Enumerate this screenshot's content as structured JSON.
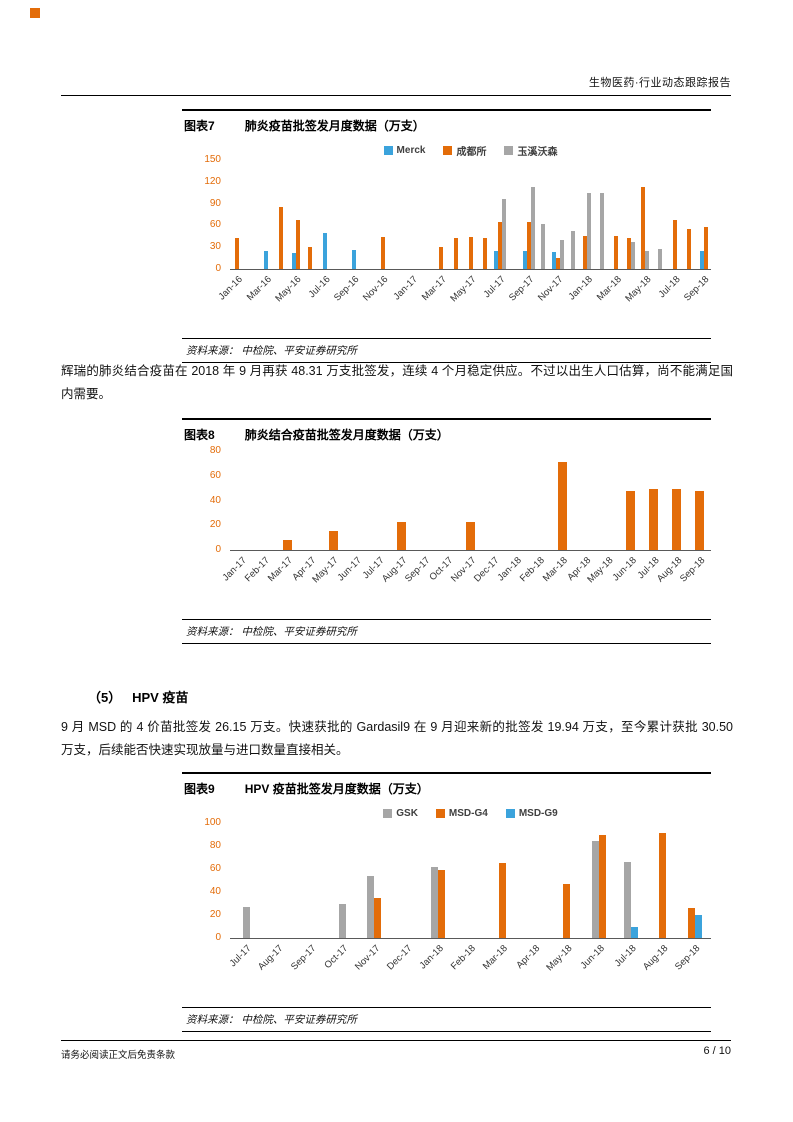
{
  "page": {
    "header_title": "生物医药·行业动态跟踪报告",
    "footer_disclaimer": "请务必阅读正文后免责条款",
    "page_number": "6 / 10"
  },
  "colors": {
    "blue": "#3BA3DC",
    "orange": "#E36C09",
    "gray": "#A6A6A6",
    "axis_value": "#E36C09",
    "accent_square": "#E36C09"
  },
  "figures": {
    "fig7": {
      "label": "图表7",
      "title": "肺炎疫苗批签发月度数据（万支）",
      "source": "资料来源： 中检院、平安证券研究所"
    },
    "fig8": {
      "label": "图表8",
      "title": "肺炎结合疫苗批签发月度数据（万支）",
      "source": "资料来源： 中检院、平安证券研究所"
    },
    "fig9": {
      "label": "图表9",
      "title": "HPV 疫苗批签发月度数据（万支）",
      "source": "资料来源： 中检院、平安证券研究所"
    }
  },
  "body": {
    "paragraph1": "辉瑞的肺炎结合疫苗在 2018 年 9 月再获 48.31 万支批签发，连续 4 个月稳定供应。不过以出生人口估算，尚不能满足国内需要。",
    "section_heading": "（5）   HPV 疫苗",
    "paragraph2": "9 月 MSD 的 4 价苗批签发 26.15 万支。快速获批的 Gardasil9 在 9 月迎来新的批签发 19.94 万支，至今累计获批 30.50 万支，后续能否快速实现放量与进口数量直接相关。"
  },
  "chart_data": [
    {
      "id": "fig7",
      "type": "bar",
      "title": "肺炎疫苗批签发月度数据（万支）",
      "ylim": [
        0,
        150
      ],
      "ystep": 30,
      "tick_every": 2,
      "legend": true,
      "legend_position": "top",
      "grid": false,
      "categories": [
        "Jan-16",
        "Feb-16",
        "Mar-16",
        "Apr-16",
        "May-16",
        "Jun-16",
        "Jul-16",
        "Aug-16",
        "Sep-16",
        "Oct-16",
        "Nov-16",
        "Dec-16",
        "Jan-17",
        "Feb-17",
        "Mar-17",
        "Apr-17",
        "May-17",
        "Jun-17",
        "Jul-17",
        "Aug-17",
        "Sep-17",
        "Oct-17",
        "Nov-17",
        "Dec-17",
        "Jan-18",
        "Feb-18",
        "Mar-18",
        "Apr-18",
        "May-18",
        "Jun-18",
        "Jul-18",
        "Aug-18",
        "Sep-18"
      ],
      "series": [
        {
          "name": "Merck",
          "color": "blue",
          "values": [
            0,
            0,
            25,
            0,
            22,
            0,
            50,
            0,
            26,
            0,
            0,
            0,
            0,
            0,
            0,
            0,
            0,
            0,
            25,
            0,
            25,
            0,
            23,
            0,
            0,
            0,
            0,
            0,
            0,
            0,
            0,
            0,
            25
          ]
        },
        {
          "name": "成都所",
          "color": "orange",
          "values": [
            43,
            0,
            0,
            85,
            67,
            30,
            0,
            0,
            0,
            0,
            44,
            0,
            0,
            0,
            30,
            43,
            44,
            43,
            65,
            0,
            65,
            0,
            15,
            0,
            45,
            0,
            45,
            42,
            113,
            0,
            68,
            55,
            58
          ]
        },
        {
          "name": "玉溪沃森",
          "color": "gray",
          "values": [
            0,
            0,
            0,
            0,
            0,
            0,
            0,
            0,
            0,
            0,
            0,
            0,
            0,
            0,
            0,
            0,
            0,
            0,
            97,
            0,
            113,
            62,
            40,
            52,
            105,
            104,
            0,
            37,
            25,
            27,
            0,
            0,
            0
          ]
        }
      ]
    },
    {
      "id": "fig8",
      "type": "bar",
      "title": "肺炎结合疫苗批签发月度数据（万支）",
      "ylim": [
        0,
        80
      ],
      "ystep": 20,
      "tick_every": 1,
      "legend": false,
      "grid": false,
      "categories": [
        "Jan-17",
        "Feb-17",
        "Mar-17",
        "Apr-17",
        "May-17",
        "Jun-17",
        "Jul-17",
        "Aug-17",
        "Sep-17",
        "Oct-17",
        "Nov-17",
        "Dec-17",
        "Jan-18",
        "Feb-18",
        "Mar-18",
        "Apr-18",
        "May-18",
        "Jun-18",
        "Jul-18",
        "Aug-18",
        "Sep-18"
      ],
      "series": [
        {
          "name": "",
          "color": "orange",
          "values": [
            0,
            0,
            8,
            0,
            15,
            0,
            0,
            23,
            0,
            0,
            23,
            0,
            0,
            0,
            71,
            0,
            0,
            48,
            49,
            49,
            48
          ]
        }
      ]
    },
    {
      "id": "fig9",
      "type": "bar",
      "title": "HPV 疫苗批签发月度数据（万支）",
      "ylim": [
        0,
        100
      ],
      "ystep": 20,
      "tick_every": 1,
      "legend": true,
      "legend_position": "top",
      "grid": false,
      "categories": [
        "Jul-17",
        "Aug-17",
        "Sep-17",
        "Oct-17",
        "Nov-17",
        "Dec-17",
        "Jan-18",
        "Feb-18",
        "Mar-18",
        "Apr-18",
        "May-18",
        "Jun-18",
        "Jul-18",
        "Aug-18",
        "Sep-18"
      ],
      "series": [
        {
          "name": "GSK",
          "color": "gray",
          "values": [
            27,
            0,
            0,
            30,
            54,
            0,
            62,
            0,
            0,
            0,
            0,
            84,
            66,
            0,
            0
          ]
        },
        {
          "name": "MSD-G4",
          "color": "orange",
          "values": [
            0,
            0,
            0,
            0,
            35,
            0,
            59,
            0,
            65,
            0,
            47,
            90,
            0,
            91,
            26
          ]
        },
        {
          "name": "MSD-G9",
          "color": "blue",
          "values": [
            0,
            0,
            0,
            0,
            0,
            0,
            0,
            0,
            0,
            0,
            0,
            0,
            10,
            0,
            20
          ]
        }
      ]
    }
  ]
}
